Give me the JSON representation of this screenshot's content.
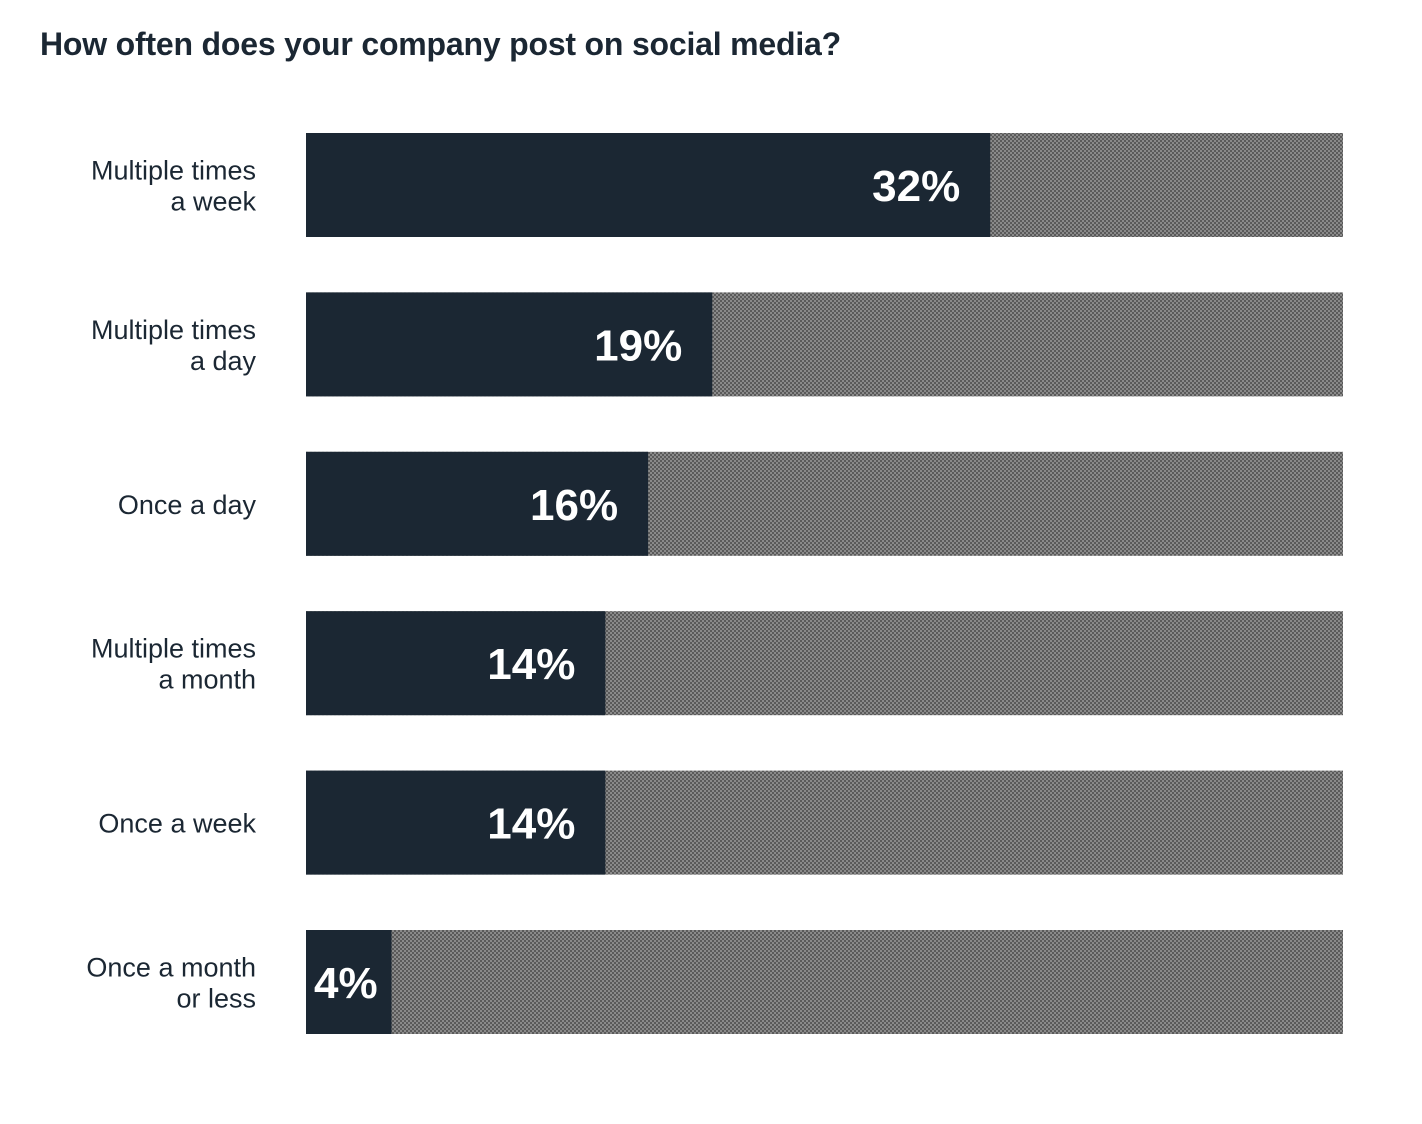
{
  "chart_data": {
    "type": "bar",
    "orientation": "horizontal",
    "title": "How often does your company post on social media?",
    "xlabel": "",
    "ylabel": "",
    "xlim": [
      0,
      48.5
    ],
    "grid": false,
    "categories": [
      [
        "Multiple times",
        "a week"
      ],
      [
        "Multiple times",
        "a day"
      ],
      [
        "Once a day"
      ],
      [
        "Multiple times",
        "a month"
      ],
      [
        "Once a week"
      ],
      [
        "Once a month",
        "or less"
      ]
    ],
    "values": [
      32,
      19,
      16,
      14,
      14,
      4
    ],
    "value_labels": [
      "32%",
      "19%",
      "16%",
      "14%",
      "14%",
      "4%"
    ],
    "colors": {
      "bar": "#1b2733",
      "remainder": "#8a8a8a",
      "remainder_pattern": "#5a5a5a",
      "title": "#1b2733",
      "label": "#1b2733",
      "value_label": "#ffffff"
    }
  }
}
